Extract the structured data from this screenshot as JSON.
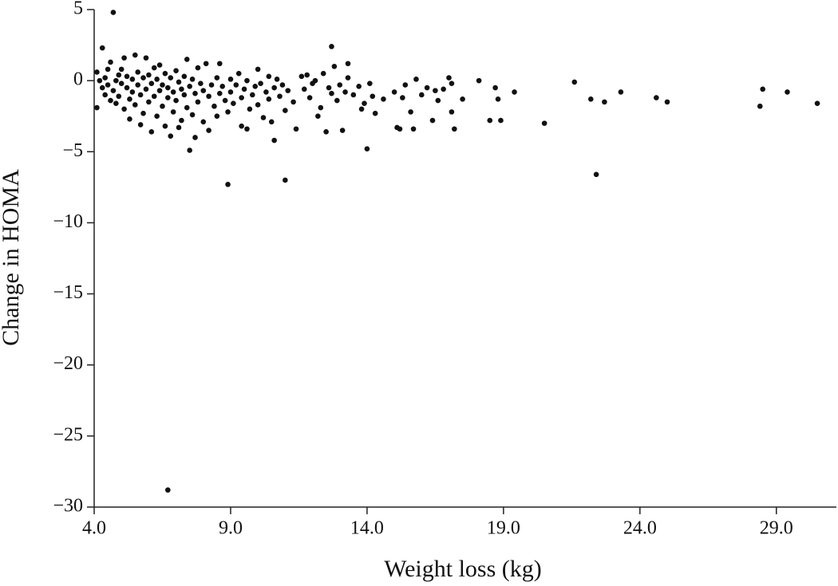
{
  "chart_data": {
    "type": "scatter",
    "x_label": "Weight loss (kg)",
    "y_label": "Change in HOMA",
    "color": "#111111",
    "xlim": [
      4,
      31.2
    ],
    "ylim": [
      -30,
      5
    ],
    "xticks": [
      {
        "value": 4,
        "label": "4.0"
      },
      {
        "value": 9,
        "label": "9.0"
      },
      {
        "value": 14,
        "label": "14.0"
      },
      {
        "value": 19,
        "label": "19.0"
      },
      {
        "value": 24,
        "label": "24.0"
      },
      {
        "value": 29,
        "label": "29.0"
      }
    ],
    "yticks": [
      5,
      0,
      {
        "value": -5,
        "label": "−5"
      },
      {
        "value": -10,
        "label": "−10"
      },
      {
        "value": -15,
        "label": "−15"
      },
      {
        "value": -20,
        "label": "−20"
      },
      {
        "value": -25,
        "label": "−25"
      },
      {
        "value": -30,
        "label": "−30"
      }
    ],
    "x": [
      4.1,
      4.1,
      4.2,
      4.3,
      4.4,
      4.4,
      4.5,
      4.5,
      4.6,
      4.6,
      4.7,
      4.8,
      4.8,
      4.9,
      4.9,
      5.0,
      5.0,
      5.1,
      5.1,
      5.2,
      5.2,
      5.3,
      5.3,
      5.4,
      5.4,
      5.5,
      5.5,
      5.6,
      5.6,
      5.7,
      5.7,
      5.8,
      5.8,
      5.9,
      5.9,
      6.0,
      6.0,
      6.1,
      6.1,
      6.2,
      6.2,
      6.3,
      6.3,
      6.4,
      6.4,
      6.5,
      6.5,
      6.6,
      6.6,
      6.7,
      6.7,
      6.8,
      6.8,
      6.9,
      6.9,
      7.0,
      7.0,
      7.1,
      7.1,
      7.2,
      7.2,
      7.3,
      7.3,
      7.4,
      7.4,
      7.5,
      7.6,
      7.6,
      7.7,
      7.7,
      7.8,
      7.8,
      7.9,
      8.0,
      8.0,
      8.1,
      8.2,
      8.2,
      8.3,
      8.4,
      8.5,
      8.5,
      8.6,
      8.6,
      8.7,
      8.8,
      8.9,
      9.0,
      9.0,
      9.1,
      9.2,
      9.3,
      9.4,
      9.4,
      9.5,
      9.6,
      9.6,
      9.7,
      9.8,
      9.9,
      10.0,
      10.0,
      10.1,
      10.2,
      10.3,
      10.4,
      10.4,
      10.5,
      10.6,
      10.7,
      10.8,
      10.9,
      11.0,
      11.1,
      11.3,
      11.4,
      11.6,
      11.7,
      11.8,
      11.9,
      12.0,
      12.1,
      12.2,
      12.3,
      12.4,
      12.5,
      12.6,
      12.7,
      12.8,
      12.9,
      13.0,
      13.1,
      13.2,
      13.3,
      13.5,
      13.7,
      13.8,
      13.9,
      14.1,
      14.2,
      14.3,
      14.6,
      15.0,
      15.1,
      15.2,
      15.3,
      15.4,
      15.6,
      15.7,
      15.8,
      16.0,
      16.2,
      16.4,
      16.5,
      16.6,
      16.8,
      17.0,
      17.1,
      17.1,
      17.2,
      4.7,
      4.3,
      12.7,
      13.3,
      6.7,
      8.9,
      11.0,
      22.4,
      7.5,
      14.0,
      20.5,
      10.6,
      21.6,
      22.2,
      22.7,
      23.3,
      24.6,
      25.0,
      28.4,
      28.5,
      29.4,
      30.5,
      18.1,
      18.5,
      18.9,
      18.7,
      19.4,
      18.8,
      17.5
    ],
    "values": [
      0.6,
      -1.9,
      0,
      -0.5,
      0.2,
      -1.0,
      -0.3,
      0.8,
      1.3,
      -1.4,
      -0.7,
      0,
      -1.6,
      0.4,
      -1.1,
      -0.2,
      0.8,
      -2.0,
      1.6,
      -0.5,
      0.3,
      -1.3,
      -2.7,
      0.1,
      -0.8,
      1.8,
      -1.7,
      -0.3,
      0.6,
      -3.1,
      -1.0,
      0.2,
      -2.3,
      1.6,
      -0.6,
      -1.5,
      0.4,
      -3.6,
      -0.2,
      0.9,
      -1.1,
      -2.5,
      0.1,
      -0.7,
      1.1,
      -1.8,
      -0.3,
      -3.2,
      0.5,
      -1.2,
      -0.5,
      0.2,
      -3.9,
      -2.2,
      -0.8,
      0.7,
      -1.4,
      -0.1,
      -3.3,
      -2.8,
      -0.6,
      0.3,
      -1.0,
      1.5,
      -1.9,
      -0.4,
      -2.4,
      0.1,
      -0.9,
      -4.0,
      0.9,
      -1.5,
      -0.2,
      -2.9,
      -0.7,
      1.2,
      -1.1,
      -3.5,
      -0.3,
      -1.8,
      0.2,
      -2.5,
      1.2,
      -0.9,
      -0.4,
      -1.4,
      -2.2,
      0.1,
      -0.8,
      -1.6,
      -0.3,
      0.5,
      -1.2,
      -3.2,
      -0.6,
      -3.4,
      0.0,
      -2.0,
      -1.0,
      -0.4,
      0.8,
      -1.7,
      -0.2,
      -2.6,
      -0.8,
      0.3,
      -1.3,
      -2.9,
      -0.5,
      0.1,
      -1.1,
      -0.3,
      -2.1,
      -0.7,
      -1.5,
      -3.4,
      0.3,
      -0.6,
      0.4,
      -1.2,
      -0.2,
      0.0,
      -2.5,
      -1.9,
      0.5,
      -3.6,
      -0.5,
      -0.9,
      1.0,
      -1.4,
      -0.3,
      -3.5,
      -0.8,
      0.2,
      -1.0,
      -0.4,
      -2.0,
      -1.6,
      -0.2,
      -1.1,
      -2.3,
      -1.3,
      -0.8,
      -3.3,
      -3.4,
      -1.2,
      -0.3,
      -2.2,
      -3.4,
      0.1,
      -1.0,
      -0.5,
      -2.8,
      -0.7,
      -1.4,
      -0.6,
      0.2,
      -0.2,
      -2.2,
      -3.4,
      4.8,
      2.3,
      2.4,
      1.2,
      -28.8,
      -7.3,
      -7.0,
      -6.6,
      -4.9,
      -4.8,
      -3.0,
      -4.2,
      -0.1,
      -1.3,
      -1.5,
      -0.8,
      -1.2,
      -1.5,
      -1.8,
      -0.6,
      -0.8,
      -1.6,
      0.0,
      -2.8,
      -2.8,
      -0.5,
      -0.8,
      -1.3,
      -1.3
    ]
  }
}
